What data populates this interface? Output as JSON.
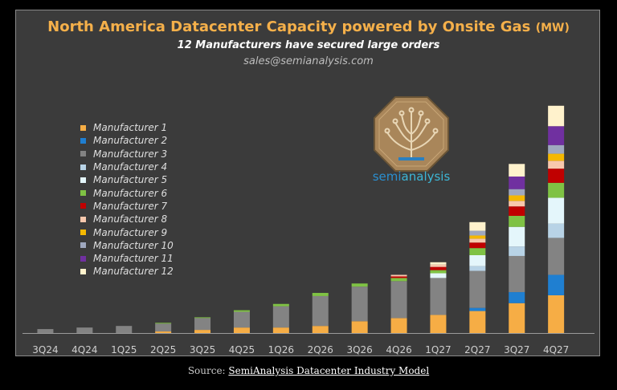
{
  "chart_data": {
    "type": "bar",
    "stacked": true,
    "title": "North America Datacenter Capacity powered by Onsite Gas",
    "title_unit": "(MW)",
    "subtitle": "12 Manufacturers have secured large orders",
    "contact": "sales@semianalysis.com",
    "categories": [
      "3Q24",
      "4Q24",
      "1Q25",
      "2Q25",
      "3Q25",
      "4Q25",
      "1Q26",
      "2Q26",
      "3Q26",
      "4Q26",
      "1Q27",
      "2Q27",
      "3Q27",
      "4Q27"
    ],
    "ylim": [
      0,
      300
    ],
    "grid": false,
    "legend_position": "left",
    "series": [
      {
        "name": "Manufacturer 1",
        "color": "#f6ad45",
        "values": [
          0,
          0,
          0,
          2,
          4,
          7,
          7,
          9,
          15,
          19,
          23,
          28,
          38,
          48
        ]
      },
      {
        "name": "Manufacturer 2",
        "color": "#1f7fd1",
        "values": [
          0,
          0,
          0,
          0,
          0,
          0,
          0,
          0,
          0,
          0,
          0,
          4,
          14,
          26
        ]
      },
      {
        "name": "Manufacturer 3",
        "color": "#838383",
        "values": [
          5,
          7,
          9,
          10,
          15,
          20,
          27,
          38,
          44,
          47,
          47,
          47,
          46,
          47
        ]
      },
      {
        "name": "Manufacturer 4",
        "color": "#b8d3e6",
        "values": [
          0,
          0,
          0,
          0,
          0,
          0,
          0,
          0,
          0,
          0,
          0,
          6,
          12,
          18
        ]
      },
      {
        "name": "Manufacturer 5",
        "color": "#e4f6fb",
        "values": [
          0,
          0,
          0,
          0,
          0,
          0,
          0,
          0,
          0,
          0,
          6,
          14,
          25,
          33
        ]
      },
      {
        "name": "Manufacturer 6",
        "color": "#7fc244",
        "values": [
          0,
          0,
          0,
          1,
          1,
          2,
          3,
          4,
          4,
          4,
          4,
          9,
          14,
          19
        ]
      },
      {
        "name": "Manufacturer 7",
        "color": "#c00000",
        "values": [
          0,
          0,
          0,
          0,
          0,
          0,
          0,
          0,
          0,
          2,
          4,
          7,
          12,
          18
        ]
      },
      {
        "name": "Manufacturer 8",
        "color": "#f8c8ad",
        "values": [
          0,
          0,
          0,
          0,
          0,
          0,
          0,
          0,
          0,
          2,
          3,
          5,
          7,
          10
        ]
      },
      {
        "name": "Manufacturer 9",
        "color": "#f5b800",
        "values": [
          0,
          0,
          0,
          0,
          0,
          0,
          0,
          0,
          0,
          0,
          0,
          4,
          7,
          9
        ]
      },
      {
        "name": "Manufacturer 10",
        "color": "#9fa8bf",
        "values": [
          0,
          0,
          0,
          0,
          0,
          0,
          0,
          0,
          0,
          0,
          0,
          6,
          8,
          11
        ]
      },
      {
        "name": "Manufacturer 11",
        "color": "#7030a0",
        "values": [
          0,
          0,
          0,
          0,
          0,
          0,
          0,
          0,
          0,
          0,
          0,
          0,
          16,
          24
        ]
      },
      {
        "name": "Manufacturer 12",
        "color": "#fff2cc",
        "values": [
          0,
          0,
          0,
          0,
          0,
          0,
          0,
          0,
          0,
          0,
          3,
          11,
          16,
          26
        ]
      }
    ]
  },
  "source": {
    "prefix": "Source: ",
    "link": "SemiAnalysis Datacenter Industry Model"
  },
  "logo": {
    "text_semi": "semi",
    "text_analysis": "analysis",
    "semi_color": "#2a8fd0",
    "analysis_color": "#3cb6d6"
  }
}
